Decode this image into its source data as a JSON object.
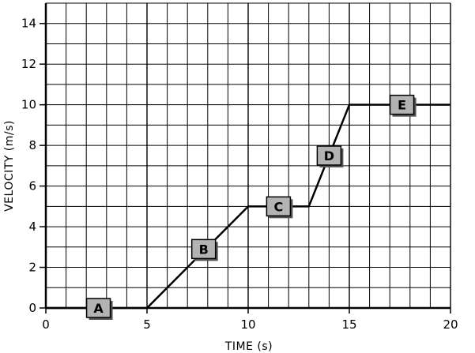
{
  "chart_data": {
    "type": "line",
    "xlabel": "TIME (s)",
    "ylabel": "VELOCITY (m/s)",
    "xlim": [
      0,
      20
    ],
    "ylim": [
      0,
      15
    ],
    "x_ticks": [
      0,
      5,
      10,
      15,
      20
    ],
    "y_ticks": [
      0,
      2,
      4,
      6,
      8,
      10,
      12,
      14
    ],
    "grid": true,
    "grid_minor_x_step": 1,
    "grid_minor_y_step": 1,
    "series": [
      {
        "x": [
          0,
          5,
          10,
          13,
          15,
          20
        ],
        "y": [
          0,
          0,
          5,
          5,
          10,
          10
        ]
      }
    ],
    "annotations": [
      {
        "text": "A",
        "x": 2.6,
        "y": 0
      },
      {
        "text": "B",
        "x": 7.8,
        "y": 2.9
      },
      {
        "text": "C",
        "x": 11.5,
        "y": 5
      },
      {
        "text": "D",
        "x": 14.0,
        "y": 7.5
      },
      {
        "text": "E",
        "x": 17.6,
        "y": 10
      }
    ],
    "colors": {
      "line": "#000000",
      "grid": "#000000",
      "label_box": "#b3b3b3"
    }
  }
}
